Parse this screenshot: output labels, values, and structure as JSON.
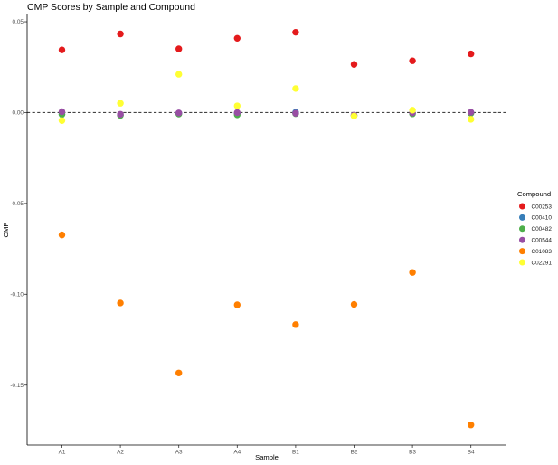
{
  "chart_data": {
    "type": "scatter",
    "title": "CMP Scores by Sample and Compound",
    "xlabel": "Sample",
    "ylabel": "CMP",
    "categories": [
      "A1",
      "A2",
      "A3",
      "A4",
      "B1",
      "B2",
      "B3",
      "B4"
    ],
    "ylim": [
      -0.183,
      0.054
    ],
    "yticks": [
      0.05,
      0.0,
      -0.05,
      -0.1,
      -0.15
    ],
    "ytick_labels": [
      "0.05",
      "0.00",
      "-0.05",
      "-0.10",
      "-0.15"
    ],
    "grid": false,
    "reference_line": {
      "y": 0,
      "style": "dashed"
    },
    "legend": {
      "title": "Compound",
      "position": "right"
    },
    "series": [
      {
        "name": "C00253",
        "color": "#e41a1c",
        "values": [
          0.0345,
          0.0433,
          0.0351,
          0.0409,
          0.0442,
          0.0265,
          0.0285,
          0.0323
        ]
      },
      {
        "name": "C00410",
        "color": "#377eb8",
        "values": [
          -0.0008,
          -0.0013,
          -0.0004,
          -0.0004,
          0.0001,
          -0.0016,
          -0.0003,
          -0.0001
        ]
      },
      {
        "name": "C00482",
        "color": "#4daf4a",
        "values": [
          -0.001,
          -0.0015,
          -0.0008,
          -0.0012,
          -0.0006,
          -0.0018,
          -0.0007,
          -0.0004
        ]
      },
      {
        "name": "C00544",
        "color": "#984ea3",
        "values": [
          0.0005,
          -0.0009,
          -0.0002,
          0.0,
          -0.0004,
          -0.0014,
          -0.0001,
          0.0002
        ]
      },
      {
        "name": "C01083",
        "color": "#ff7f00",
        "values": [
          -0.0673,
          -0.1048,
          -0.1433,
          -0.1058,
          -0.1167,
          -0.1056,
          -0.088,
          -0.1719
        ]
      },
      {
        "name": "C02291",
        "color": "#ffff33",
        "values": [
          -0.0044,
          0.0051,
          0.0211,
          0.0037,
          0.0132,
          -0.0019,
          0.0013,
          -0.0037
        ]
      }
    ]
  }
}
